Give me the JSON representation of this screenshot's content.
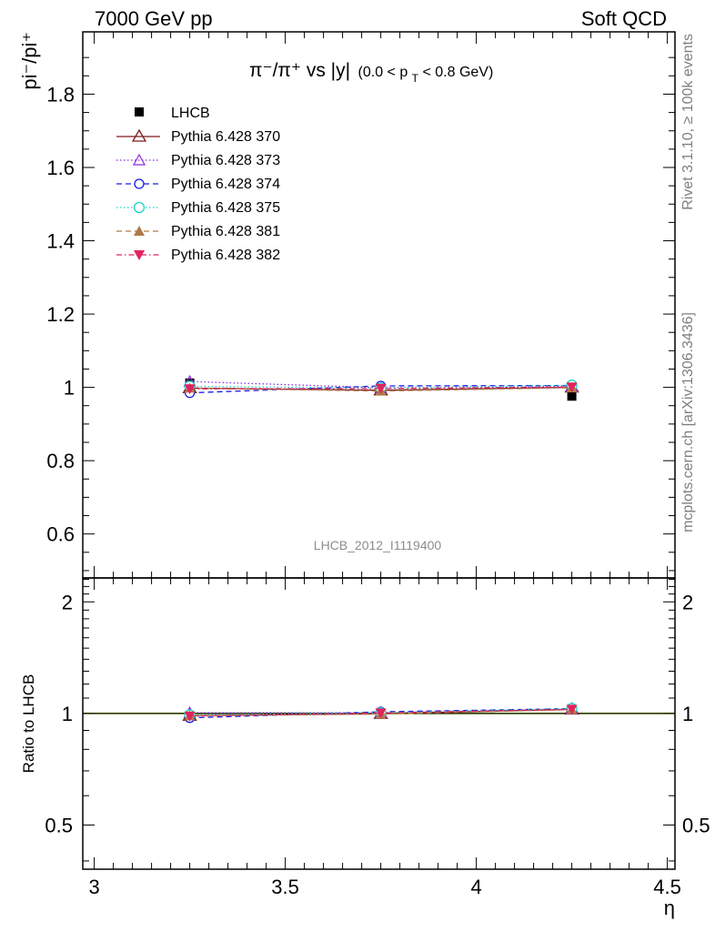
{
  "header": {
    "left": "7000 GeV pp",
    "right": "Soft QCD"
  },
  "title_text": "π⁻/π⁺ vs |y|",
  "title_cut": "(0.0 < p",
  "title_cut_sub": "T",
  "title_cut_end": " < 0.8 GeV)",
  "ylabel_main": "pi⁻/pi⁺",
  "ylabel_ratio": "Ratio to LHCB",
  "xlabel": "η",
  "watermark": "LHCB_2012_I1119400",
  "side_top": "Rivet 3.1.10, ≥ 100k events",
  "side_bottom": "mcplots.cern.ch [arXiv:1306.3436]",
  "colors": {
    "LHCB": "#000000",
    "p370": "#7f1a1a",
    "p373": "#8a2be2",
    "p374": "#1a1ae6",
    "p375": "#1ad6c2",
    "p381": "#b07a48",
    "p382": "#e0245e",
    "band": "#ccff33"
  },
  "chart_data": [
    {
      "type": "scatter",
      "panel": "main",
      "xlim": [
        2.97,
        4.52
      ],
      "ylim": [
        0.48,
        1.97
      ],
      "ylabel": "pi⁻/pi⁺",
      "yticks": [
        0.6,
        0.8,
        1.0,
        1.2,
        1.4,
        1.6,
        1.8
      ],
      "ytick_labels": [
        "0.6",
        "0.8",
        "1",
        "1.2",
        "1.4",
        "1.6",
        "1.8"
      ],
      "legend_position": "top-left",
      "x": [
        3.25,
        3.75,
        4.25
      ],
      "series": [
        {
          "name": "LHCB",
          "values": [
            1.012,
            0.994,
            0.976
          ]
        },
        {
          "name": "Pythia 6.428 370",
          "values": [
            0.998,
            0.992,
            1.0
          ]
        },
        {
          "name": "Pythia 6.428 373",
          "values": [
            1.016,
            0.999,
            1.002
          ]
        },
        {
          "name": "Pythia 6.428 374",
          "values": [
            0.985,
            1.004,
            1.005
          ]
        },
        {
          "name": "Pythia 6.428 375",
          "values": [
            1.003,
            0.998,
            1.006
          ]
        },
        {
          "name": "Pythia 6.428 381",
          "values": [
            0.998,
            0.99,
            0.999
          ]
        },
        {
          "name": "Pythia 6.428 382",
          "values": [
            0.996,
            0.997,
            1.001
          ]
        }
      ]
    },
    {
      "type": "scatter",
      "panel": "ratio",
      "xlim": [
        2.97,
        4.52
      ],
      "ylim": [
        0.38,
        2.32
      ],
      "ylog": true,
      "xlabel": "η",
      "ylabel": "Ratio to LHCB",
      "xticks": [
        3,
        3.5,
        4,
        4.5
      ],
      "xtick_labels": [
        "3",
        "3.5",
        "4",
        "4.5"
      ],
      "yticks": [
        0.5,
        1,
        2
      ],
      "ytick_labels": [
        "0.5",
        "1",
        "2"
      ],
      "x": [
        3.25,
        3.75,
        4.25
      ],
      "series": [
        {
          "name": "Pythia 6.428 370",
          "values": [
            0.986,
            0.998,
            1.025
          ]
        },
        {
          "name": "Pythia 6.428 373",
          "values": [
            1.004,
            1.005,
            1.027
          ]
        },
        {
          "name": "Pythia 6.428 374",
          "values": [
            0.973,
            1.01,
            1.03
          ]
        },
        {
          "name": "Pythia 6.428 375",
          "values": [
            0.991,
            1.004,
            1.031
          ]
        },
        {
          "name": "Pythia 6.428 381",
          "values": [
            0.986,
            0.996,
            1.024
          ]
        },
        {
          "name": "Pythia 6.428 382",
          "values": [
            0.984,
            1.003,
            1.026
          ]
        }
      ]
    }
  ]
}
